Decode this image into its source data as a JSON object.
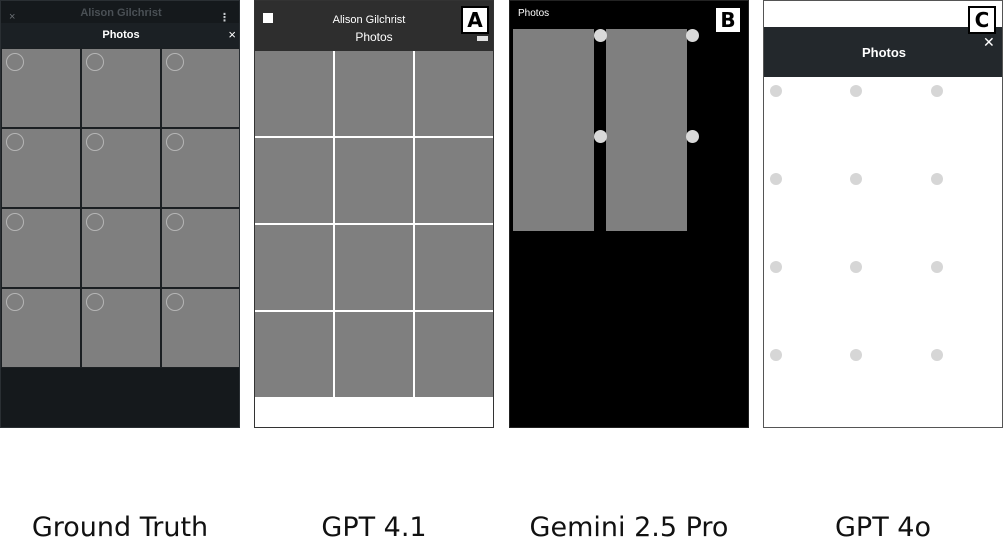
{
  "panels": {
    "ground_truth": {
      "caption": "Ground Truth",
      "account_name": "Alison Gilchrist",
      "title": "Photos",
      "close_glyph": "×",
      "small_close_glyph": "×",
      "menu_glyph": "⋮",
      "icons": [
        "close-icon",
        "more-vertical-icon",
        "selection-circle-icon"
      ]
    },
    "gpt41": {
      "caption": "GPT 4.1",
      "badge": "A",
      "account_name": "Alison Gilchrist",
      "title": "Photos"
    },
    "gemini": {
      "caption": "Gemini 2.5 Pro",
      "badge": "B",
      "title": "Photos"
    },
    "gpt4o": {
      "caption": "GPT 4o",
      "badge": "C",
      "title": "Photos",
      "close_glyph": "✕"
    }
  },
  "colors": {
    "photo_placeholder": "#7f7f7f",
    "dark_background": "#15191c",
    "gemini_background": "#000000"
  }
}
